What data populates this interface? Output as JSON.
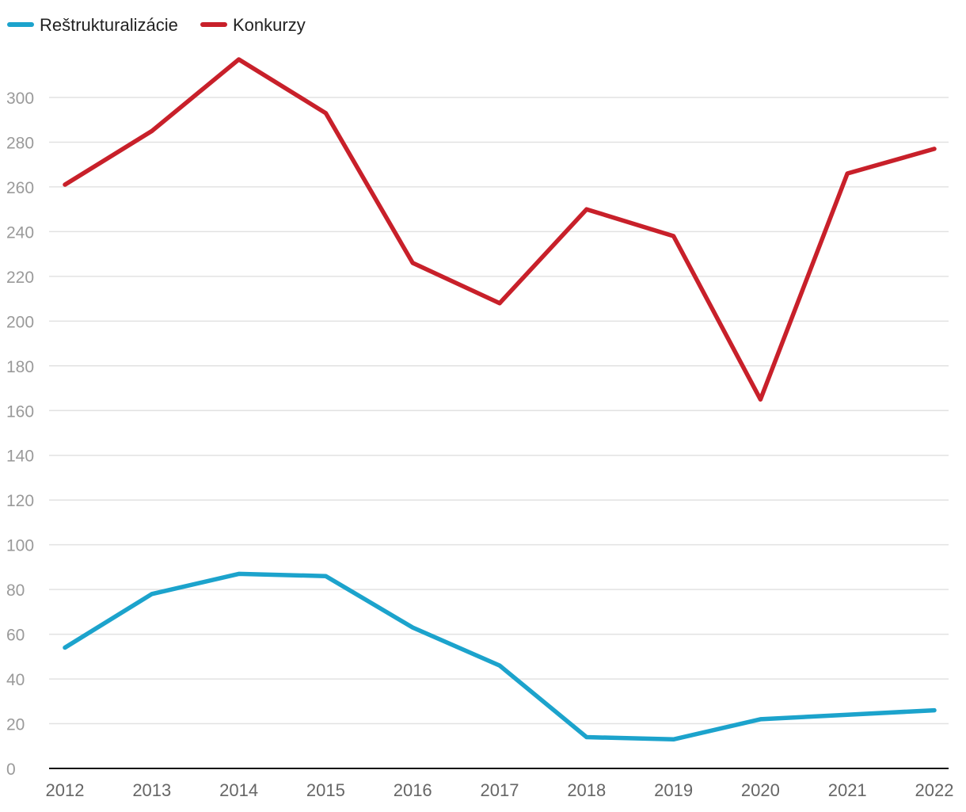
{
  "chart_data": {
    "type": "line",
    "title": "",
    "xlabel": "",
    "ylabel": "",
    "categories": [
      "2012",
      "2013",
      "2014",
      "2015",
      "2016",
      "2017",
      "2018",
      "2019",
      "2020",
      "2021",
      "2022"
    ],
    "ylim": [
      0,
      300
    ],
    "yticks": [
      0,
      20,
      40,
      60,
      80,
      100,
      120,
      140,
      160,
      180,
      200,
      220,
      240,
      260,
      280,
      300
    ],
    "grid": true,
    "legend_position": "top-left",
    "series": [
      {
        "name": "Reštrukturalizácie",
        "color": "#1ca3cc",
        "values": [
          54,
          78,
          87,
          86,
          63,
          46,
          14,
          13,
          22,
          24,
          26
        ]
      },
      {
        "name": "Konkurzy",
        "color": "#c8202a",
        "values": [
          261,
          285,
          317,
          293,
          226,
          208,
          250,
          238,
          165,
          266,
          277
        ]
      }
    ]
  }
}
